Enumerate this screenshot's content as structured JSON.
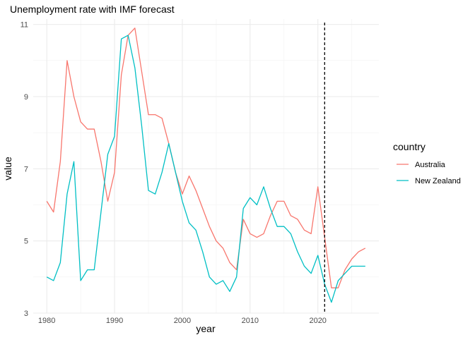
{
  "chart_data": {
    "type": "line",
    "title": "Unemployment rate with IMF forecast",
    "xlabel": "year",
    "ylabel": "value",
    "xlim": [
      1978,
      2029
    ],
    "ylim": [
      3,
      11.15
    ],
    "x_ticks": [
      1980,
      1990,
      2000,
      2010,
      2020
    ],
    "y_ticks": [
      3,
      5,
      7,
      9,
      11
    ],
    "grid": true,
    "legend": {
      "title": "country",
      "position": "right"
    },
    "vline": {
      "x": 2021,
      "style": "dashed"
    },
    "series": [
      {
        "name": "Australia",
        "color": "#F8766D",
        "x": [
          1980,
          1981,
          1982,
          1983,
          1984,
          1985,
          1986,
          1987,
          1988,
          1989,
          1990,
          1991,
          1992,
          1993,
          1994,
          1995,
          1996,
          1997,
          1998,
          1999,
          2000,
          2001,
          2002,
          2003,
          2004,
          2005,
          2006,
          2007,
          2008,
          2009,
          2010,
          2011,
          2012,
          2013,
          2014,
          2015,
          2016,
          2017,
          2018,
          2019,
          2020,
          2021,
          2022,
          2023,
          2024,
          2025,
          2026,
          2027
        ],
        "values": [
          6.1,
          5.8,
          7.2,
          10.0,
          9.0,
          8.3,
          8.1,
          8.1,
          7.2,
          6.1,
          6.9,
          9.6,
          10.7,
          10.9,
          9.7,
          8.5,
          8.5,
          8.4,
          7.7,
          6.9,
          6.3,
          6.8,
          6.4,
          5.9,
          5.4,
          5.0,
          4.8,
          4.4,
          4.2,
          5.6,
          5.2,
          5.1,
          5.2,
          5.7,
          6.1,
          6.1,
          5.7,
          5.6,
          5.3,
          5.2,
          6.5,
          5.1,
          3.7,
          3.7,
          4.2,
          4.5,
          4.7,
          4.8
        ]
      },
      {
        "name": "New Zealand",
        "color": "#00BFC4",
        "x": [
          1980,
          1981,
          1982,
          1983,
          1984,
          1985,
          1986,
          1987,
          1988,
          1989,
          1990,
          1991,
          1992,
          1993,
          1994,
          1995,
          1996,
          1997,
          1998,
          1999,
          2000,
          2001,
          2002,
          2003,
          2004,
          2005,
          2006,
          2007,
          2008,
          2009,
          2010,
          2011,
          2012,
          2013,
          2014,
          2015,
          2016,
          2017,
          2018,
          2019,
          2020,
          2021,
          2022,
          2023,
          2024,
          2025,
          2026,
          2027
        ],
        "values": [
          4.0,
          3.9,
          4.4,
          6.3,
          7.2,
          3.9,
          4.2,
          4.2,
          5.8,
          7.4,
          7.9,
          10.6,
          10.7,
          9.8,
          8.2,
          6.4,
          6.3,
          6.9,
          7.7,
          6.9,
          6.1,
          5.5,
          5.3,
          4.7,
          4.0,
          3.8,
          3.9,
          3.6,
          4.0,
          5.9,
          6.2,
          6.0,
          6.5,
          5.9,
          5.4,
          5.4,
          5.2,
          4.7,
          4.3,
          4.1,
          4.6,
          3.8,
          3.3,
          3.9,
          4.1,
          4.3,
          4.3,
          4.3
        ]
      }
    ]
  }
}
